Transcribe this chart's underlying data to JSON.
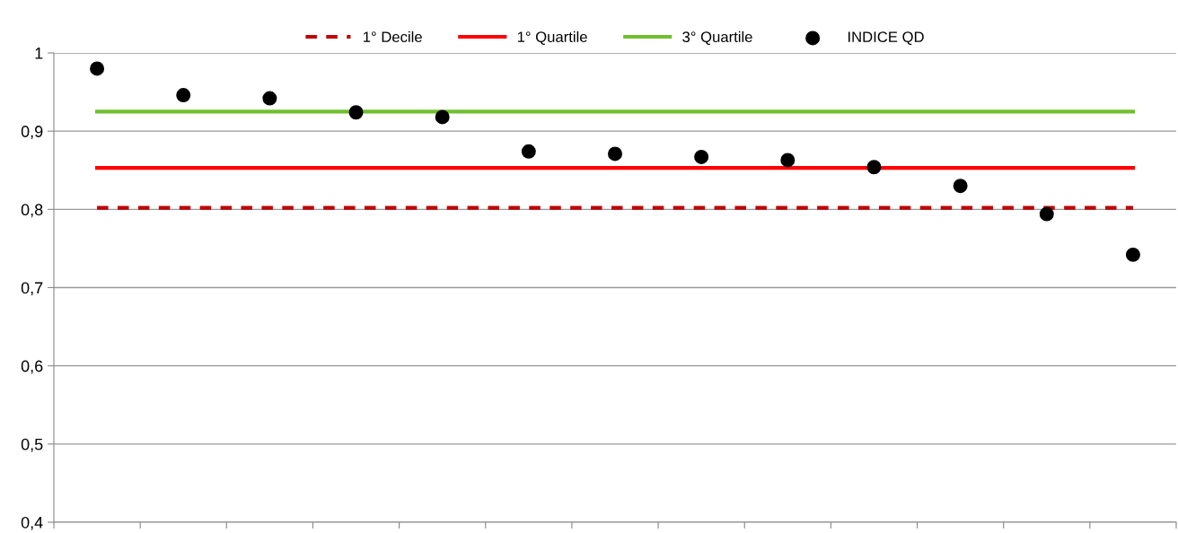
{
  "chart_data": {
    "type": "scatter",
    "categories": [
      null,
      null,
      null,
      null,
      null,
      null,
      null,
      null,
      null,
      null,
      null,
      null,
      null
    ],
    "series": [
      {
        "name": "1° Decile",
        "type": "line",
        "line_style": "dashed",
        "color": "#c00000",
        "values": [
          0.802,
          0.802,
          0.802,
          0.802,
          0.802,
          0.802,
          0.802,
          0.802,
          0.802,
          0.802,
          0.802,
          0.802,
          0.802
        ]
      },
      {
        "name": "1° Quartile",
        "type": "line",
        "line_style": "solid",
        "color": "#ff0000",
        "values": [
          0.853,
          0.853,
          0.853,
          0.853,
          0.853,
          0.853,
          0.853,
          0.853,
          0.853,
          0.853,
          0.853,
          0.853,
          0.853
        ]
      },
      {
        "name": "3° Quartile",
        "type": "line",
        "line_style": "solid",
        "color": "#70bf2f",
        "values": [
          0.925,
          0.925,
          0.925,
          0.925,
          0.925,
          0.925,
          0.925,
          0.925,
          0.925,
          0.925,
          0.925,
          0.925,
          0.925
        ]
      },
      {
        "name": "INDICE QD",
        "marker": "circle",
        "color": "#000000",
        "values": [
          0.98,
          0.946,
          0.942,
          0.924,
          0.918,
          0.874,
          0.871,
          0.867,
          0.863,
          0.854,
          0.83,
          0.794,
          0.742
        ]
      }
    ],
    "ylim": [
      0.4,
      1
    ],
    "yticks": [
      {
        "value": 0.4,
        "label": "0,4"
      },
      {
        "value": 0.5,
        "label": "0,5"
      },
      {
        "value": 0.6,
        "label": "0,6"
      },
      {
        "value": 0.7,
        "label": "0,7"
      },
      {
        "value": 0.8,
        "label": "0,8"
      },
      {
        "value": 0.9,
        "label": "0,9"
      },
      {
        "value": 1,
        "label": "1"
      }
    ],
    "grid": "y",
    "legend": "top",
    "tick_labels": "y"
  }
}
